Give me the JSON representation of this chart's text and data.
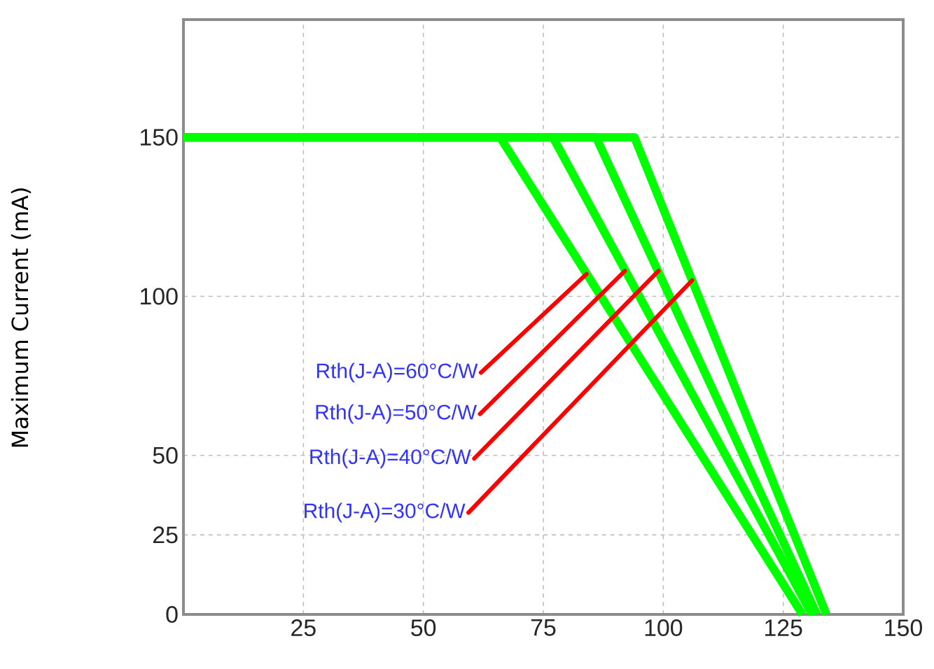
{
  "chart_data": {
    "type": "line",
    "ylabel": "Maximum Current (mA)",
    "xlim": [
      0,
      150
    ],
    "ylim": [
      0,
      187
    ],
    "xticks": [
      25,
      50,
      75,
      100,
      125,
      150
    ],
    "yticks": [
      0,
      25,
      50,
      100,
      150
    ],
    "grid": true,
    "series": [
      {
        "color": "#00ff00",
        "x": [
          0,
          66,
          129
        ],
        "values": [
          150,
          150,
          0
        ]
      },
      {
        "color": "#00ff00",
        "x": [
          0,
          77,
          131
        ],
        "values": [
          150,
          150,
          0
        ]
      },
      {
        "color": "#00ff00",
        "x": [
          0,
          86,
          132
        ],
        "values": [
          150,
          150,
          0
        ]
      },
      {
        "color": "#00ff00",
        "x": [
          0,
          94,
          134
        ],
        "values": [
          150,
          150,
          0
        ]
      }
    ],
    "annotations": [
      {
        "text": "Rth(J-A)=60°C/W",
        "x": 84,
        "y": 107
      },
      {
        "text": "Rth(J-A)=50°C/W",
        "x": 92,
        "y": 108
      },
      {
        "text": "Rth(J-A)=40°C/W",
        "x": 99,
        "y": 108
      },
      {
        "text": "Rth(J-A)=30°C/W",
        "x": 106,
        "y": 105
      }
    ]
  }
}
